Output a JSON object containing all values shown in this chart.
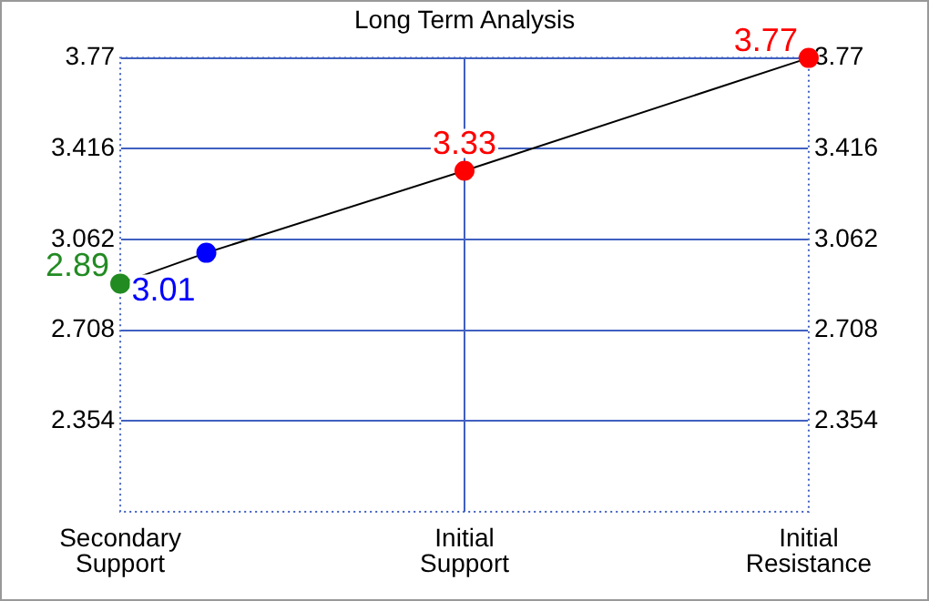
{
  "chart_data": {
    "type": "line",
    "title": "Long Term Analysis",
    "categories": [
      "Secondary Support",
      null,
      null,
      null,
      "Initial Support",
      null,
      null,
      null,
      "Initial Resistance"
    ],
    "series": [
      {
        "color": "#000000",
        "colors": [
          "#228b22",
          "#0000ff",
          null,
          null,
          "#ff0000",
          null,
          null,
          null,
          "#ff0000"
        ],
        "values": [
          2.89,
          3.01,
          null,
          null,
          3.33,
          null,
          null,
          null,
          3.77
        ]
      }
    ],
    "ylim": [
      2.0,
      3.77
    ],
    "yticks": [
      2.354,
      2.708,
      3.062,
      3.416,
      3.77
    ],
    "y2lim": [
      2.0,
      3.77
    ],
    "y2ticks": [
      2.354,
      2.708,
      3.062,
      3.416,
      3.77
    ],
    "grid": true,
    "marker": "circle",
    "line_style": "solid",
    "data_labels": true
  }
}
